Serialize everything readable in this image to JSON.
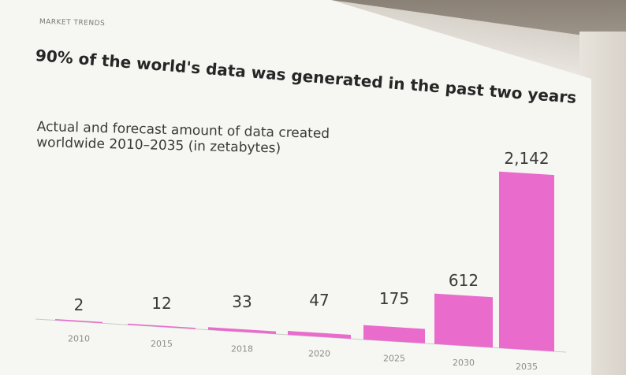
{
  "header": {
    "eyebrow": "MARKET TRENDS",
    "headline": "90% of the world's data was generated in the past two years",
    "subtitle": "Actual and forecast amount of data created worldwide 2010–2035 (in zetabytes)"
  },
  "colors": {
    "bar": "#e96ccd",
    "text": "#3a3a3a",
    "tick": "#8d8d8d"
  },
  "chart_data": {
    "type": "bar",
    "title": "Actual and forecast amount of data created worldwide 2010–2035 (in zetabytes)",
    "categories": [
      "2010",
      "2015",
      "2018",
      "2020",
      "2025",
      "2030",
      "2035"
    ],
    "values": [
      2,
      12,
      33,
      47,
      175,
      612,
      2142
    ],
    "value_labels": [
      "2",
      "12",
      "33",
      "47",
      "175",
      "612",
      "2,142"
    ],
    "xlabel": "",
    "ylabel": "",
    "grid": false,
    "legend": "none"
  }
}
